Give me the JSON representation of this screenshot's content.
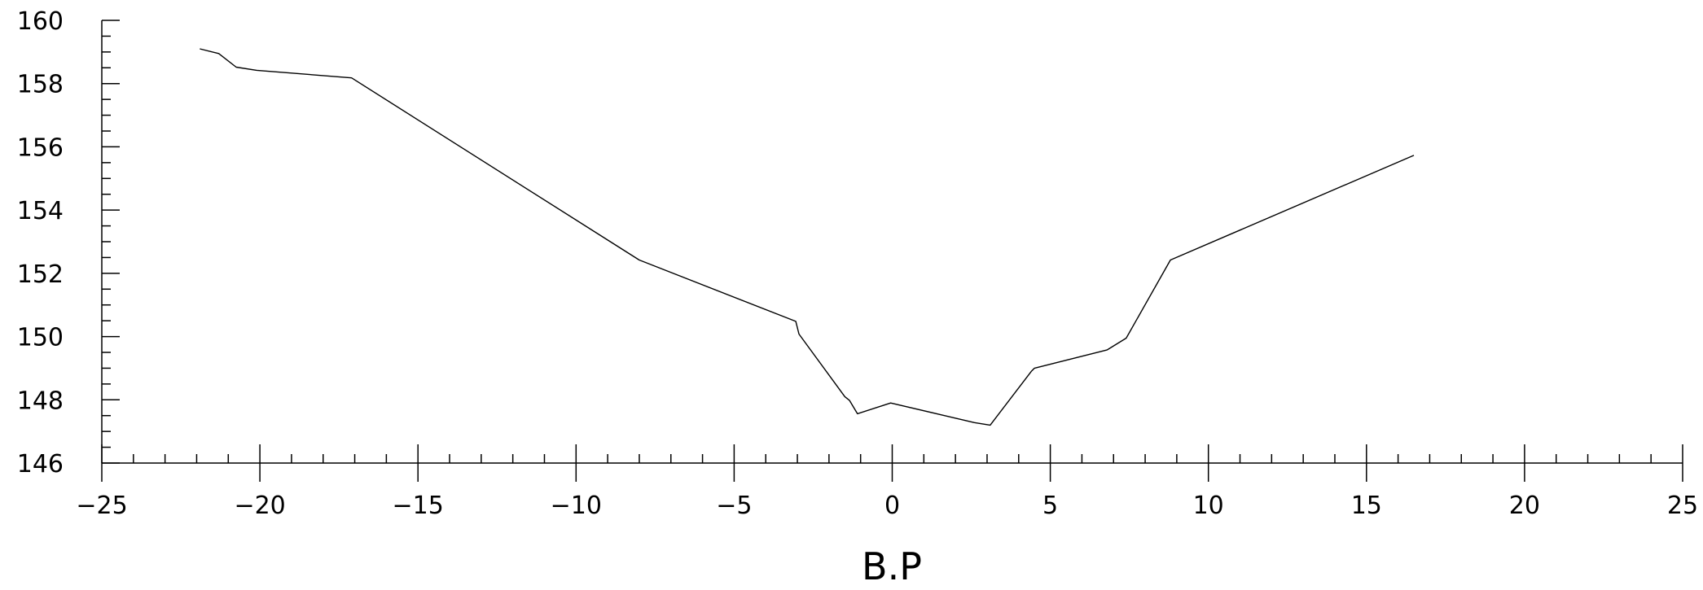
{
  "chart_data": {
    "type": "line",
    "title": "",
    "xlabel": "B.P",
    "ylabel": "",
    "xlim": [
      -25,
      25
    ],
    "ylim": [
      146,
      160
    ],
    "x_ticks": [
      -25,
      -20,
      -15,
      -10,
      -5,
      0,
      5,
      10,
      15,
      20,
      25
    ],
    "x_tick_labels": [
      "−25",
      "−20",
      "−15",
      "−10",
      "−5",
      "0",
      "5",
      "10",
      "15",
      "20",
      "25"
    ],
    "y_ticks": [
      146,
      148,
      150,
      152,
      154,
      156,
      158,
      160
    ],
    "y_tick_labels": [
      "146",
      "148",
      "150",
      "152",
      "154",
      "156",
      "158",
      "160"
    ],
    "grid": false,
    "legend": false,
    "line_color": "#000000",
    "series": [
      {
        "x": [
          -21.9,
          -21.3,
          -20.75,
          -20.1,
          -17.1,
          -8.0,
          -3.05,
          -2.95,
          -1.5,
          -1.35,
          -1.1,
          -0.05,
          2.6,
          3.1,
          4.4,
          4.5,
          6.8,
          7.4,
          8.8,
          16.5
        ],
        "y": [
          159.1,
          158.95,
          158.52,
          158.42,
          158.18,
          152.42,
          150.48,
          150.08,
          148.1,
          147.98,
          147.56,
          147.9,
          147.28,
          147.2,
          148.9,
          149.0,
          149.58,
          149.95,
          152.42,
          155.73
        ]
      }
    ]
  }
}
